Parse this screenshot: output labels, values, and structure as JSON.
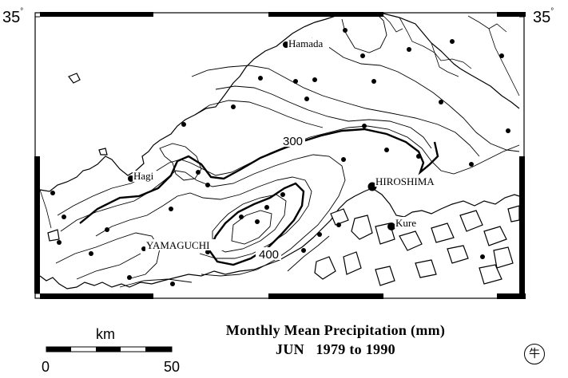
{
  "map": {
    "lat_label_left": "35",
    "lat_label_right": "35",
    "degree_symbol": "°",
    "places": {
      "hamada": "Hamada",
      "hagi": "Hagi",
      "hiroshima": "HIROSHIMA",
      "kure": "Kure",
      "yamaguchi": "YAMAGUCHI"
    },
    "contour_labels": [
      "300",
      "400"
    ],
    "contour_interval_mm": 50
  },
  "scale_bar": {
    "unit": "km",
    "start": "0",
    "end": "50"
  },
  "title": {
    "line1": "Monthly Mean Precipitation (mm)",
    "line2": "JUN   1979 to 1990"
  },
  "stamp": {
    "glyph": "牛"
  },
  "colors": {
    "land": "#ffffff",
    "sea": "#ffffff",
    "lines": "#000000"
  }
}
